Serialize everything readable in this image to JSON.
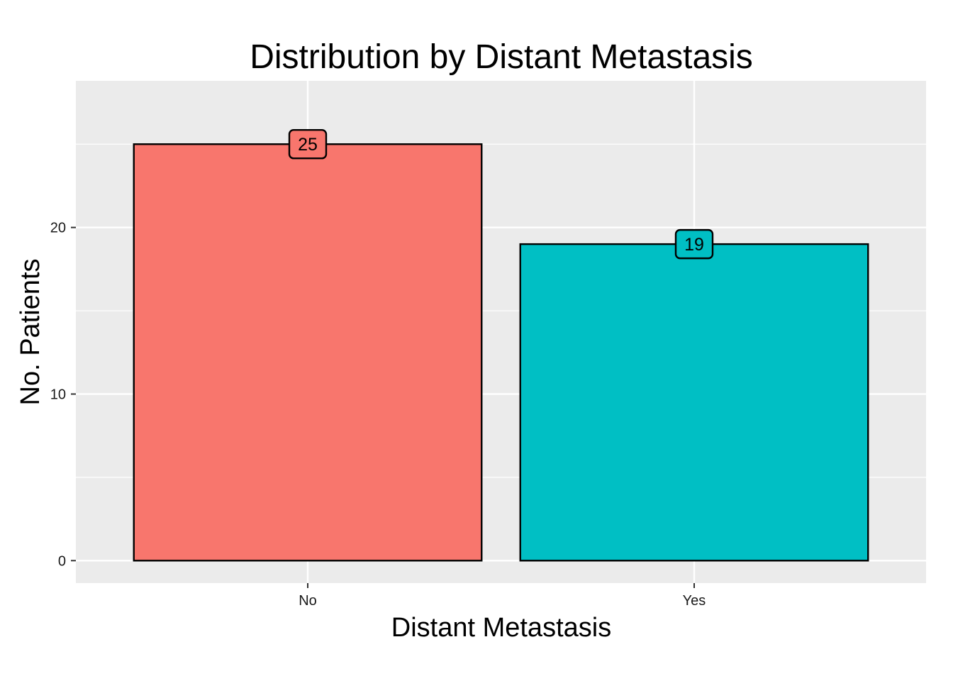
{
  "chart_data": {
    "type": "bar",
    "title": "Distribution by Distant Metastasis",
    "xlabel": "Distant Metastasis",
    "ylabel": "No. Patients",
    "categories": [
      "No",
      "Yes"
    ],
    "values": [
      25,
      19
    ],
    "data_labels": [
      "25",
      "19"
    ],
    "colors": [
      "#F8766D",
      "#00BFC4"
    ],
    "ylim": [
      -1.35,
      28.8
    ],
    "yticks": [
      0,
      10,
      20
    ],
    "ytick_labels": [
      "0",
      "10",
      "20"
    ],
    "grid": true,
    "panel_background": "#EBEBEB",
    "grid_color": "#FFFFFF",
    "bar_outline": "#000000"
  }
}
